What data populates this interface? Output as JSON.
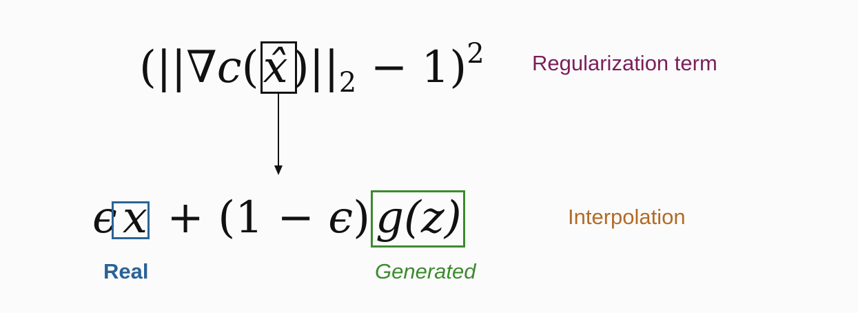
{
  "regularization": {
    "label": "Regularization term",
    "open_paren": "(",
    "bars_open": "||",
    "nabla": "∇",
    "func": "c",
    "inner_paren_open": "(",
    "var": "x̂",
    "inner_paren_close": ")",
    "bars_close": "||",
    "subscript": "2",
    "minus_one": " − 1",
    "close_paren": ")",
    "exponent": "2"
  },
  "interpolation": {
    "label": "Interpolation",
    "epsilon": "ϵ",
    "real_var": "x",
    "plus_part": " + (1 − ",
    "epsilon2": "ϵ",
    "close_paren": ")",
    "generated_expr": "g(z)",
    "real_label": "Real",
    "generated_label": "Generated"
  },
  "colors": {
    "regularization_label": "#7a1f5c",
    "interpolation_label": "#b46a25",
    "real": "#2a6396",
    "generated": "#3c8a2e",
    "box_dark": "#111111"
  }
}
